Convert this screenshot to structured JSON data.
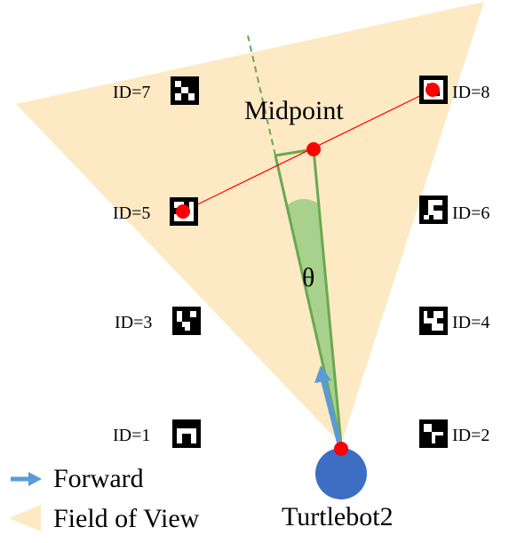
{
  "colors": {
    "fov_fill": "#fde9c4",
    "robot": "#3c6fc4",
    "point": "#ff0000",
    "angle_line": "#6aa84f",
    "angle_fill": "#a9d18e",
    "forward_arrow": "#5b9bd5"
  },
  "markers": [
    {
      "id": 7,
      "label": "ID=7"
    },
    {
      "id": 8,
      "label": "ID=8"
    },
    {
      "id": 5,
      "label": "ID=5"
    },
    {
      "id": 6,
      "label": "ID=6"
    },
    {
      "id": 3,
      "label": "ID=3"
    },
    {
      "id": 4,
      "label": "ID=4"
    },
    {
      "id": 1,
      "label": "ID=1"
    },
    {
      "id": 2,
      "label": "ID=2"
    }
  ],
  "midpoint_label": "Midpoint",
  "theta_label": "θ",
  "robot_label": "Turtlebot2",
  "legend": {
    "forward": "Forward",
    "fov": "Field of View"
  }
}
